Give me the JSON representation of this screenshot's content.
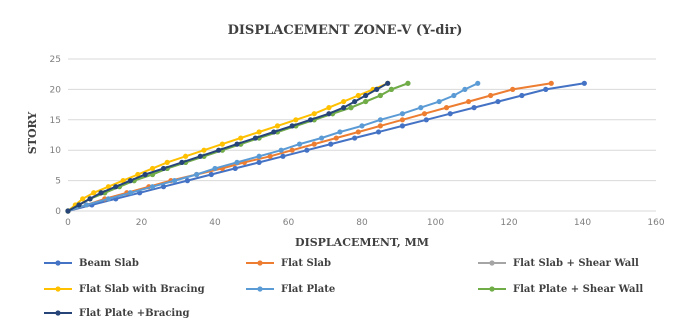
{
  "chart_data": {
    "type": "line",
    "title": "DISPLACEMENT ZONE-V (Y-dir)",
    "xlabel": "DISPLACEMENT, MM",
    "ylabel": "STORY",
    "xlim": [
      0,
      160
    ],
    "ylim": [
      0,
      25
    ],
    "xticks": [
      0,
      20,
      40,
      60,
      80,
      100,
      120,
      140,
      160
    ],
    "yticks": [
      0,
      5,
      10,
      15,
      20,
      25
    ],
    "grid": true,
    "legend_position": "bottom",
    "series": [
      {
        "name": "Beam Slab",
        "color": "#4472C4",
        "x": [
          0,
          6.5,
          13,
          19.5,
          26,
          32.5,
          39,
          45.5,
          52,
          58.5,
          65,
          71.5,
          78,
          84.5,
          91,
          97.5,
          104,
          110.5,
          117,
          123.5,
          130,
          140.5
        ],
        "y": [
          0,
          1,
          2,
          3,
          4,
          5,
          6,
          7,
          8,
          9,
          10,
          11,
          12,
          13,
          14,
          15,
          16,
          17,
          18,
          19,
          20,
          21
        ]
      },
      {
        "name": "Flat Slab",
        "color": "#ED7D31",
        "x": [
          0,
          5,
          10,
          16,
          22,
          28,
          35,
          42,
          48,
          55,
          61,
          67,
          73,
          79,
          85,
          91,
          97,
          103,
          109,
          115,
          121,
          131.5
        ],
        "y": [
          0,
          1,
          2,
          3,
          4,
          5,
          6,
          7,
          8,
          9,
          10,
          11,
          12,
          13,
          14,
          15,
          16,
          17,
          18,
          19,
          20,
          21
        ]
      },
      {
        "name": "Flat Slab + Shear Wall",
        "color": "#A5A5A5",
        "x": [
          0,
          3,
          6,
          10,
          14,
          18,
          23,
          27,
          32,
          37,
          42,
          47,
          52,
          57,
          62,
          67,
          72,
          77,
          81,
          85,
          88,
          92.5
        ],
        "y": [
          0,
          1,
          2,
          3,
          4,
          5,
          6,
          7,
          8,
          9,
          10,
          11,
          12,
          13,
          14,
          15,
          16,
          17,
          18,
          19,
          20,
          21
        ]
      },
      {
        "name": "Flat Slab with Bracing",
        "color": "#FFC000",
        "x": [
          0,
          2,
          4,
          7,
          11,
          15,
          19,
          23,
          27,
          32,
          37,
          42,
          47,
          52,
          57,
          62,
          67,
          71,
          75,
          79,
          83,
          87
        ],
        "y": [
          0,
          1,
          2,
          3,
          4,
          5,
          6,
          7,
          8,
          9,
          10,
          11,
          12,
          13,
          14,
          15,
          16,
          17,
          18,
          19,
          20,
          21
        ]
      },
      {
        "name": "Flat Plate",
        "color": "#5B9BD5",
        "x": [
          0,
          5,
          11,
          17,
          23,
          29,
          35,
          40,
          46,
          52,
          58,
          63,
          69,
          74,
          80,
          85,
          91,
          96,
          101,
          105,
          108,
          111.5
        ],
        "y": [
          0,
          1,
          2,
          3,
          4,
          5,
          6,
          7,
          8,
          9,
          10,
          11,
          12,
          13,
          14,
          15,
          16,
          17,
          18,
          19,
          20,
          21
        ]
      },
      {
        "name": "Flat Plate + Shear Wall",
        "color": "#70AD47",
        "x": [
          0,
          3,
          6,
          10,
          14,
          18,
          23,
          27,
          32,
          37,
          42,
          47,
          52,
          57,
          62,
          67,
          72,
          77,
          81,
          85,
          88,
          92.5
        ],
        "y": [
          0,
          1,
          2,
          3,
          4,
          5,
          6,
          7,
          8,
          9,
          10,
          11,
          12,
          13,
          14,
          15,
          16,
          17,
          18,
          19,
          20,
          21
        ]
      },
      {
        "name": "Flat Plate +Bracing",
        "color": "#264478",
        "x": [
          0,
          3,
          6,
          9,
          13,
          17,
          21,
          26,
          31,
          36,
          41,
          46,
          51,
          56,
          61,
          66,
          71,
          75,
          78,
          81,
          84,
          87
        ],
        "y": [
          0,
          1,
          2,
          3,
          4,
          5,
          6,
          7,
          8,
          9,
          10,
          11,
          12,
          13,
          14,
          15,
          16,
          17,
          18,
          19,
          20,
          21
        ]
      }
    ]
  }
}
